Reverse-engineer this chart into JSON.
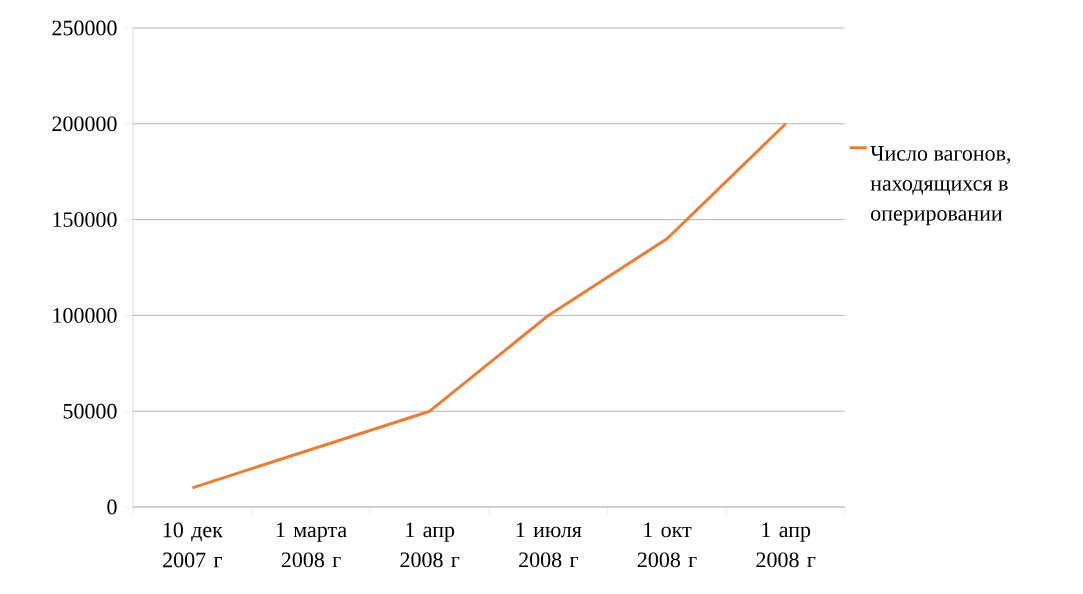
{
  "chart_data": {
    "type": "line",
    "categories": [
      "10 дек 2007 г",
      "1 марта 2008 г",
      "1 апр 2008 г",
      "1 июля 2008 г",
      "1 окт 2008 г",
      "1 апр 2008 г"
    ],
    "series": [
      {
        "name": "Число вагонов, находящихся в оперировании",
        "color": "#ed7d31",
        "values": [
          10000,
          30000,
          50000,
          100000,
          140000,
          200000
        ]
      }
    ],
    "ylim": [
      0,
      250000
    ],
    "yticks": [
      0,
      50000,
      100000,
      150000,
      200000,
      250000
    ],
    "grid": "y",
    "legend": "right",
    "marker": "none",
    "line_style": "solid"
  }
}
